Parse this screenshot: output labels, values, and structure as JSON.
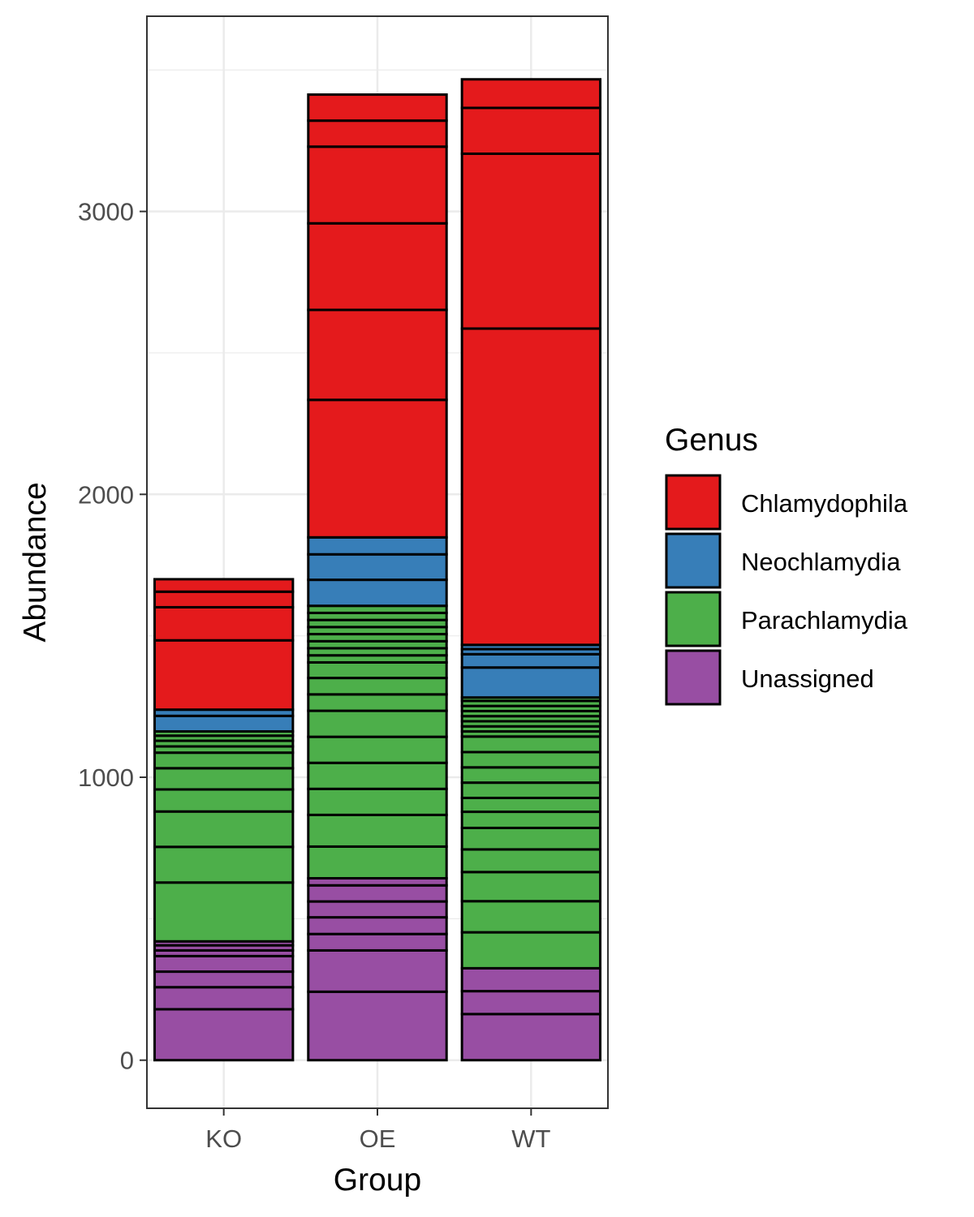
{
  "chart_data": {
    "type": "bar",
    "stacked": true,
    "title": "",
    "xlabel": "Group",
    "ylabel": "Abundance",
    "categories": [
      "KO",
      "OE",
      "WT"
    ],
    "ylim": [
      -170,
      3690
    ],
    "yticks": [
      0,
      1000,
      2000,
      3000
    ],
    "grid": true,
    "legend": {
      "title": "Genus",
      "position": "right",
      "entries": [
        "Chlamydophila",
        "Neochlamydia",
        "Parachlamydia",
        "Unassigned"
      ]
    },
    "colors": {
      "Chlamydophila": "#E41A1C",
      "Neochlamydia": "#377EB8",
      "Parachlamydia": "#4DAF4A",
      "Unassigned": "#984EA3"
    },
    "stacks": {
      "KO": [
        {
          "genus": "Unassigned",
          "value": 180
        },
        {
          "genus": "Unassigned",
          "value": 78
        },
        {
          "genus": "Unassigned",
          "value": 55
        },
        {
          "genus": "Unassigned",
          "value": 55
        },
        {
          "genus": "Unassigned",
          "value": 20
        },
        {
          "genus": "Unassigned",
          "value": 18
        },
        {
          "genus": "Unassigned",
          "value": 14
        },
        {
          "genus": "Parachlamydia",
          "value": 208
        },
        {
          "genus": "Parachlamydia",
          "value": 126
        },
        {
          "genus": "Parachlamydia",
          "value": 125
        },
        {
          "genus": "Parachlamydia",
          "value": 78
        },
        {
          "genus": "Parachlamydia",
          "value": 75
        },
        {
          "genus": "Parachlamydia",
          "value": 55
        },
        {
          "genus": "Parachlamydia",
          "value": 22
        },
        {
          "genus": "Parachlamydia",
          "value": 20
        },
        {
          "genus": "Parachlamydia",
          "value": 18
        },
        {
          "genus": "Parachlamydia",
          "value": 15
        },
        {
          "genus": "Neochlamydia",
          "value": 55
        },
        {
          "genus": "Neochlamydia",
          "value": 22
        },
        {
          "genus": "Chlamydophila",
          "value": 245
        },
        {
          "genus": "Chlamydophila",
          "value": 117
        },
        {
          "genus": "Chlamydophila",
          "value": 55
        },
        {
          "genus": "Chlamydophila",
          "value": 44
        }
      ],
      "OE": [
        {
          "genus": "Unassigned",
          "value": 242
        },
        {
          "genus": "Unassigned",
          "value": 146
        },
        {
          "genus": "Unassigned",
          "value": 58
        },
        {
          "genus": "Unassigned",
          "value": 59
        },
        {
          "genus": "Unassigned",
          "value": 56
        },
        {
          "genus": "Unassigned",
          "value": 57
        },
        {
          "genus": "Unassigned",
          "value": 25
        },
        {
          "genus": "Parachlamydia",
          "value": 112
        },
        {
          "genus": "Parachlamydia",
          "value": 112
        },
        {
          "genus": "Parachlamydia",
          "value": 92
        },
        {
          "genus": "Parachlamydia",
          "value": 92
        },
        {
          "genus": "Parachlamydia",
          "value": 92
        },
        {
          "genus": "Parachlamydia",
          "value": 92
        },
        {
          "genus": "Parachlamydia",
          "value": 58
        },
        {
          "genus": "Parachlamydia",
          "value": 58
        },
        {
          "genus": "Parachlamydia",
          "value": 55
        },
        {
          "genus": "Parachlamydia",
          "value": 25
        },
        {
          "genus": "Parachlamydia",
          "value": 25
        },
        {
          "genus": "Parachlamydia",
          "value": 25
        },
        {
          "genus": "Parachlamydia",
          "value": 25
        },
        {
          "genus": "Parachlamydia",
          "value": 25
        },
        {
          "genus": "Parachlamydia",
          "value": 25
        },
        {
          "genus": "Parachlamydia",
          "value": 25
        },
        {
          "genus": "Parachlamydia",
          "value": 25
        },
        {
          "genus": "Neochlamydia",
          "value": 92
        },
        {
          "genus": "Neochlamydia",
          "value": 90
        },
        {
          "genus": "Neochlamydia",
          "value": 60
        },
        {
          "genus": "Chlamydophila",
          "value": 486
        },
        {
          "genus": "Chlamydophila",
          "value": 318
        },
        {
          "genus": "Chlamydophila",
          "value": 306
        },
        {
          "genus": "Chlamydophila",
          "value": 271
        },
        {
          "genus": "Chlamydophila",
          "value": 92
        },
        {
          "genus": "Chlamydophila",
          "value": 92
        }
      ],
      "WT": [
        {
          "genus": "Unassigned",
          "value": 163
        },
        {
          "genus": "Unassigned",
          "value": 81
        },
        {
          "genus": "Unassigned",
          "value": 81
        },
        {
          "genus": "Parachlamydia",
          "value": 127
        },
        {
          "genus": "Parachlamydia",
          "value": 110
        },
        {
          "genus": "Parachlamydia",
          "value": 103
        },
        {
          "genus": "Parachlamydia",
          "value": 80
        },
        {
          "genus": "Parachlamydia",
          "value": 76
        },
        {
          "genus": "Parachlamydia",
          "value": 57
        },
        {
          "genus": "Parachlamydia",
          "value": 49
        },
        {
          "genus": "Parachlamydia",
          "value": 54
        },
        {
          "genus": "Parachlamydia",
          "value": 54
        },
        {
          "genus": "Parachlamydia",
          "value": 54
        },
        {
          "genus": "Parachlamydia",
          "value": 55
        },
        {
          "genus": "Parachlamydia",
          "value": 18
        },
        {
          "genus": "Parachlamydia",
          "value": 18
        },
        {
          "genus": "Parachlamydia",
          "value": 18
        },
        {
          "genus": "Parachlamydia",
          "value": 18
        },
        {
          "genus": "Parachlamydia",
          "value": 18
        },
        {
          "genus": "Parachlamydia",
          "value": 18
        },
        {
          "genus": "Parachlamydia",
          "value": 18
        },
        {
          "genus": "Parachlamydia",
          "value": 12
        },
        {
          "genus": "Neochlamydia",
          "value": 106
        },
        {
          "genus": "Neochlamydia",
          "value": 47
        },
        {
          "genus": "Neochlamydia",
          "value": 18
        },
        {
          "genus": "Neochlamydia",
          "value": 15
        },
        {
          "genus": "Chlamydophila",
          "value": 1118
        },
        {
          "genus": "Chlamydophila",
          "value": 618
        },
        {
          "genus": "Chlamydophila",
          "value": 162
        },
        {
          "genus": "Chlamydophila",
          "value": 101
        }
      ]
    }
  }
}
